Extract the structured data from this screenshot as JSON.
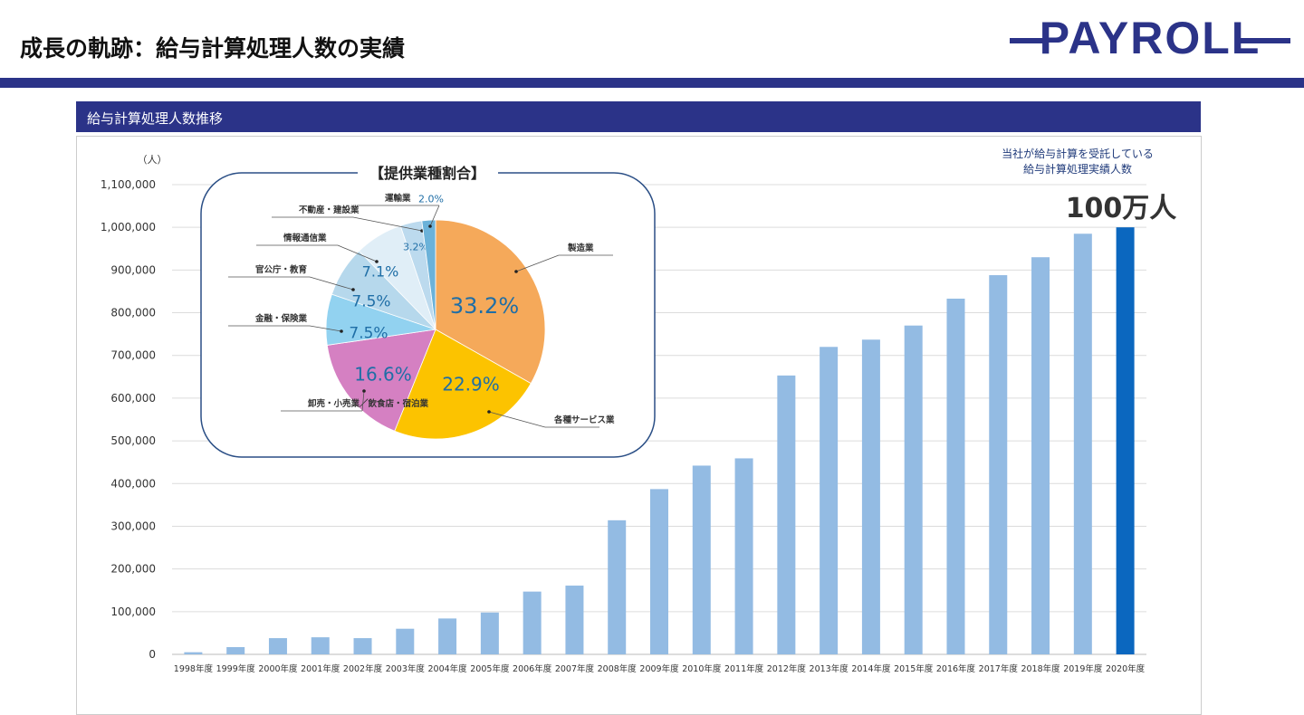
{
  "header": {
    "title": "成長の軌跡：給与計算処理人数の実績",
    "logo": "PAYROLL"
  },
  "section": {
    "title": "給与計算処理人数推移"
  },
  "colors": {
    "brand": "#2b3388",
    "bar": "#93bbe3",
    "bar_highlight": "#0b67bf"
  },
  "chart_data": [
    {
      "type": "bar",
      "title": "給与計算処理人数推移",
      "ylabel": "（人）",
      "ylim": [
        0,
        1100000
      ],
      "yticks": [
        "0",
        "100,000",
        "200,000",
        "300,000",
        "400,000",
        "500,000",
        "600,000",
        "700,000",
        "800,000",
        "900,000",
        "1,000,000",
        "1,100,000"
      ],
      "categories": [
        "1998年度",
        "1999年度",
        "2000年度",
        "2001年度",
        "2002年度",
        "2003年度",
        "2004年度",
        "2005年度",
        "2006年度",
        "2007年度",
        "2008年度",
        "2009年度",
        "2010年度",
        "2011年度",
        "2012年度",
        "2013年度",
        "2014年度",
        "2015年度",
        "2016年度",
        "2017年度",
        "2018年度",
        "2019年度",
        "2020年度"
      ],
      "values": [
        5000,
        17000,
        38000,
        40000,
        38000,
        60000,
        84000,
        98000,
        147000,
        161000,
        314000,
        387000,
        442000,
        459000,
        653000,
        720000,
        737000,
        770000,
        833000,
        888000,
        930000,
        985000,
        1000000
      ],
      "grid": true,
      "annotation": {
        "line1": "当社が給与計算を受託している",
        "line2": "給与計算処理実績人数",
        "value": "100万人"
      }
    },
    {
      "type": "pie",
      "title": "【提供業種割合】",
      "slices": [
        {
          "label": "製造業",
          "value": 33.2,
          "text": "33.2%",
          "color": "#f5a95a"
        },
        {
          "label": "各種サービス業",
          "value": 22.9,
          "text": "22.9%",
          "color": "#fcc300"
        },
        {
          "label": "卸売・小売業／飲食店・宿泊業",
          "value": 16.6,
          "text": "16.6%",
          "color": "#d580c2"
        },
        {
          "label": "金融・保険業",
          "value": 7.5,
          "text": "7.5%",
          "color": "#92d2f0"
        },
        {
          "label": "官公庁・教育",
          "value": 7.5,
          "text": "7.5%",
          "color": "#b6d8ec"
        },
        {
          "label": "情報通信業",
          "value": 7.1,
          "text": "7.1%",
          "color": "#e0eef7"
        },
        {
          "label": "不動産・建設業",
          "value": 3.2,
          "text": "3.2%",
          "color": "#bcdaee"
        },
        {
          "label": "運輸業",
          "value": 2.0,
          "text": "2.0%",
          "color": "#6bb2d9"
        }
      ]
    }
  ]
}
